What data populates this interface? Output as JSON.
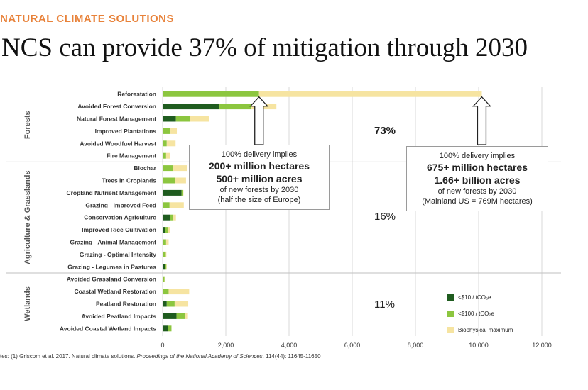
{
  "header": {
    "kicker": "NATURAL CLIMATE SOLUTIONS",
    "title": "NCS can provide 37% of mitigation through 2030"
  },
  "colors": {
    "low_cost": "#1f5c1f",
    "mid_cost": "#8cc63f",
    "max": "#f6e4a1",
    "gridline": "#d9d9d9",
    "divider": "#bfbfbf"
  },
  "chart_data": {
    "type": "bar",
    "orientation": "horizontal",
    "stacked": true,
    "xlim": [
      0,
      12000
    ],
    "xticks": [
      0,
      2000,
      4000,
      6000,
      8000,
      10000,
      12000
    ],
    "xtick_labels": [
      "0",
      "2,000",
      "4,000",
      "6,000",
      "8,000",
      "10,000",
      "12,000"
    ],
    "grid": "vertical",
    "legend_position": "bottom-right",
    "categories": [
      "Reforestation",
      "Avoided Forest Conversion",
      "Natural Forest Management",
      "Improved Plantations",
      "Avoided Woodfuel Harvest",
      "Fire Management",
      "Biochar",
      "Trees in Croplands",
      "Cropland Nutrient Management",
      "Grazing - Improved Feed",
      "Conservation Agriculture",
      "Improved Rice Cultivation",
      "Grazing - Animal Management",
      "Grazing - Optimal Intensity",
      "Grazing - Legumes in Pastures",
      "Avoided Grassland Conversion",
      "Coastal Wetland Restoration",
      "Peatland Restoration",
      "Avoided Peatland Impacts",
      "Avoided Coastal Wetland Impacts"
    ],
    "series": [
      {
        "name": "<$10 / tCO₂e",
        "color": "#1f5c1f",
        "values": [
          0,
          1800,
          420,
          0,
          0,
          0,
          0,
          0,
          600,
          0,
          230,
          80,
          0,
          0,
          80,
          0,
          0,
          130,
          440,
          170
        ]
      },
      {
        "name": "<$100 / tCO₂e",
        "color": "#8cc63f",
        "values": [
          3050,
          1000,
          440,
          250,
          130,
          110,
          340,
          400,
          40,
          220,
          110,
          80,
          110,
          100,
          40,
          60,
          190,
          250,
          270,
          110
        ]
      },
      {
        "name": "Biophysical maximum",
        "color": "#f6e4a1",
        "values": [
          7050,
          800,
          620,
          200,
          280,
          130,
          430,
          340,
          20,
          450,
          80,
          80,
          80,
          20,
          10,
          30,
          650,
          430,
          90,
          0
        ]
      }
    ],
    "groups": [
      {
        "name": "Forests",
        "start": 0,
        "end": 5,
        "percent": "73%",
        "percent_bold": true
      },
      {
        "name": "Agriculture & Grasslands",
        "start": 6,
        "end": 14,
        "percent": "16%",
        "percent_bold": false
      },
      {
        "name": "Wetlands",
        "start": 15,
        "end": 19,
        "percent": "11%",
        "percent_bold": false
      }
    ],
    "annotations": [
      {
        "id": "a1",
        "x": 3050,
        "lines": [
          "100% delivery implies",
          "200+ million hectares",
          "500+ million acres",
          "of new forests by 2030",
          "(half the size of Europe)"
        ]
      },
      {
        "id": "a2",
        "x": 10100,
        "lines": [
          "100% delivery implies",
          "675+ million hectares",
          "1.66+ billion acres",
          "of new forests by 2030",
          "(Mainland US = 769M hectares)"
        ]
      }
    ]
  },
  "footnote": {
    "prefix": "tes: (1) Griscom et al. 2017. Natural climate solutions. ",
    "journal": "Proceedings of the National Academy of Sciences",
    "suffix": ". 114(44): 11645-11650"
  }
}
